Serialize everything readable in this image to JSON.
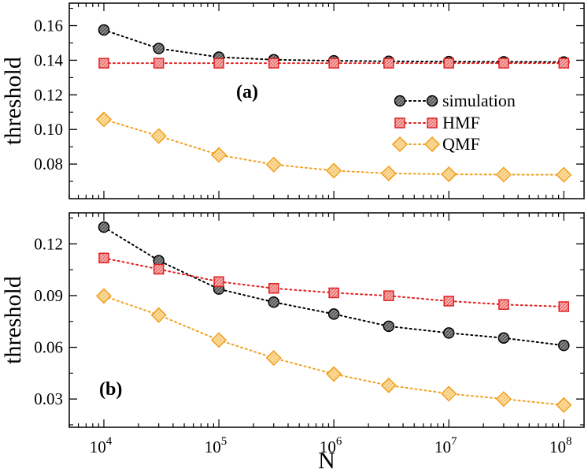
{
  "chart_data": [
    {
      "type": "line",
      "panel_label": "(a)",
      "ylabel": "threshold",
      "xlabel": "",
      "xscale": "log",
      "xlim": [
        5000,
        150000000
      ],
      "ylim": [
        0.06,
        0.173
      ],
      "yticks": [
        0.08,
        0.1,
        0.12,
        0.14,
        0.16
      ],
      "ytick_labels": [
        "0.08",
        "0.10",
        "0.12",
        "0.14",
        "0.16"
      ],
      "x": [
        10000,
        30000,
        100000,
        300000,
        1000000,
        3000000,
        10000000,
        30000000,
        100000000
      ],
      "legend_position": "right",
      "series": [
        {
          "name": "simulation",
          "color": "#000000",
          "marker": "circle",
          "values": [
            0.1575,
            0.1468,
            0.1418,
            0.1403,
            0.1397,
            0.1394,
            0.1392,
            0.1391,
            0.139
          ]
        },
        {
          "name": "HMF",
          "color": "#e02020",
          "marker": "square",
          "values": [
            0.1383,
            0.1383,
            0.1383,
            0.1383,
            0.1383,
            0.1383,
            0.1383,
            0.1383,
            0.1383
          ]
        },
        {
          "name": "QMF",
          "color": "#f0a020",
          "marker": "diamond",
          "values": [
            0.1058,
            0.0962,
            0.0853,
            0.0797,
            0.0762,
            0.0746,
            0.0741,
            0.0739,
            0.0738
          ]
        }
      ]
    },
    {
      "type": "line",
      "panel_label": "(b)",
      "ylabel": "threshold",
      "xlabel": "N",
      "xscale": "log",
      "xlim": [
        5000,
        150000000
      ],
      "ylim": [
        0.0136,
        0.138
      ],
      "yticks": [
        0.03,
        0.06,
        0.09,
        0.12
      ],
      "ytick_labels": [
        "0.03",
        "0.06",
        "0.09",
        "0.12"
      ],
      "xticks": [
        10000,
        100000,
        1000000,
        10000000,
        100000000
      ],
      "xtick_base": [
        "10",
        "10",
        "10",
        "10",
        "10"
      ],
      "xtick_exp": [
        "4",
        "5",
        "6",
        "7",
        "8"
      ],
      "x": [
        10000,
        30000,
        100000,
        300000,
        1000000,
        3000000,
        10000000,
        30000000,
        100000000
      ],
      "series": [
        {
          "name": "simulation",
          "color": "#000000",
          "marker": "circle",
          "values": [
            0.1297,
            0.1103,
            0.0938,
            0.0862,
            0.0793,
            0.0722,
            0.0683,
            0.0654,
            0.0611
          ]
        },
        {
          "name": "HMF",
          "color": "#e02020",
          "marker": "square",
          "values": [
            0.1118,
            0.1053,
            0.0981,
            0.0942,
            0.0916,
            0.0899,
            0.0868,
            0.0848,
            0.0836
          ]
        },
        {
          "name": "QMF",
          "color": "#f0a020",
          "marker": "diamond",
          "values": [
            0.0898,
            0.0787,
            0.0642,
            0.0538,
            0.0445,
            0.0379,
            0.0331,
            0.03,
            0.0265
          ]
        }
      ]
    }
  ]
}
